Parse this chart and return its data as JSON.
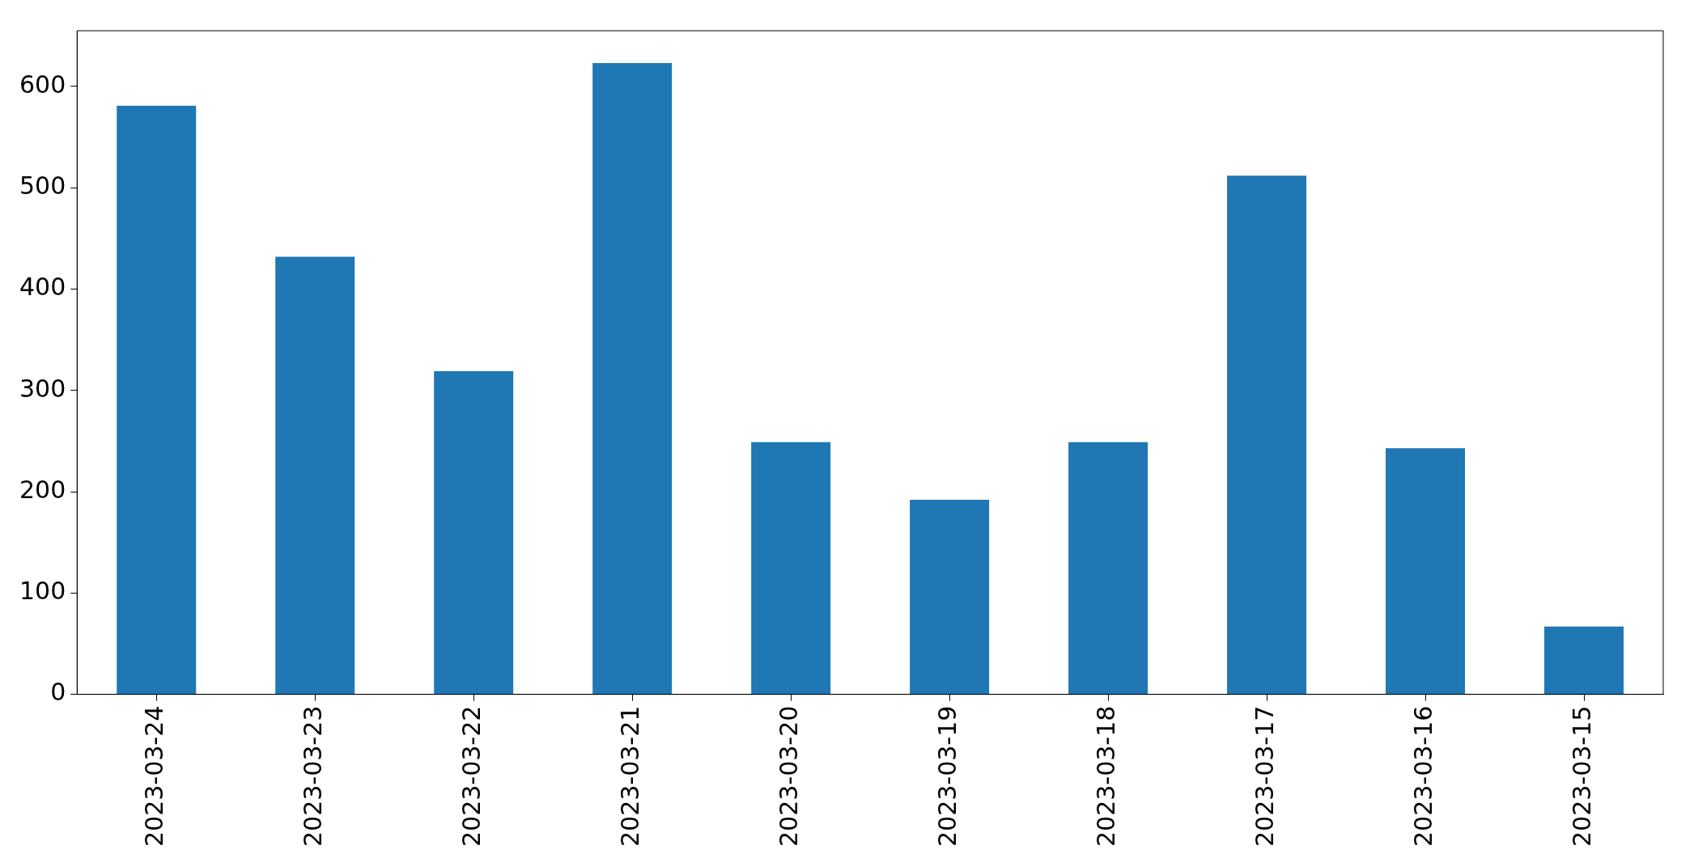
{
  "chart_data": {
    "type": "bar",
    "categories": [
      "2023-03-24",
      "2023-03-23",
      "2023-03-22",
      "2023-03-21",
      "2023-03-20",
      "2023-03-19",
      "2023-03-18",
      "2023-03-17",
      "2023-03-16",
      "2023-03-15"
    ],
    "values": [
      581,
      432,
      319,
      623,
      249,
      192,
      249,
      512,
      243,
      67
    ],
    "color": "#1f77b4",
    "ylim": [
      0,
      655
    ],
    "yticks": [
      0,
      100,
      200,
      300,
      400,
      500,
      600
    ],
    "grid": false,
    "legend": false
  }
}
